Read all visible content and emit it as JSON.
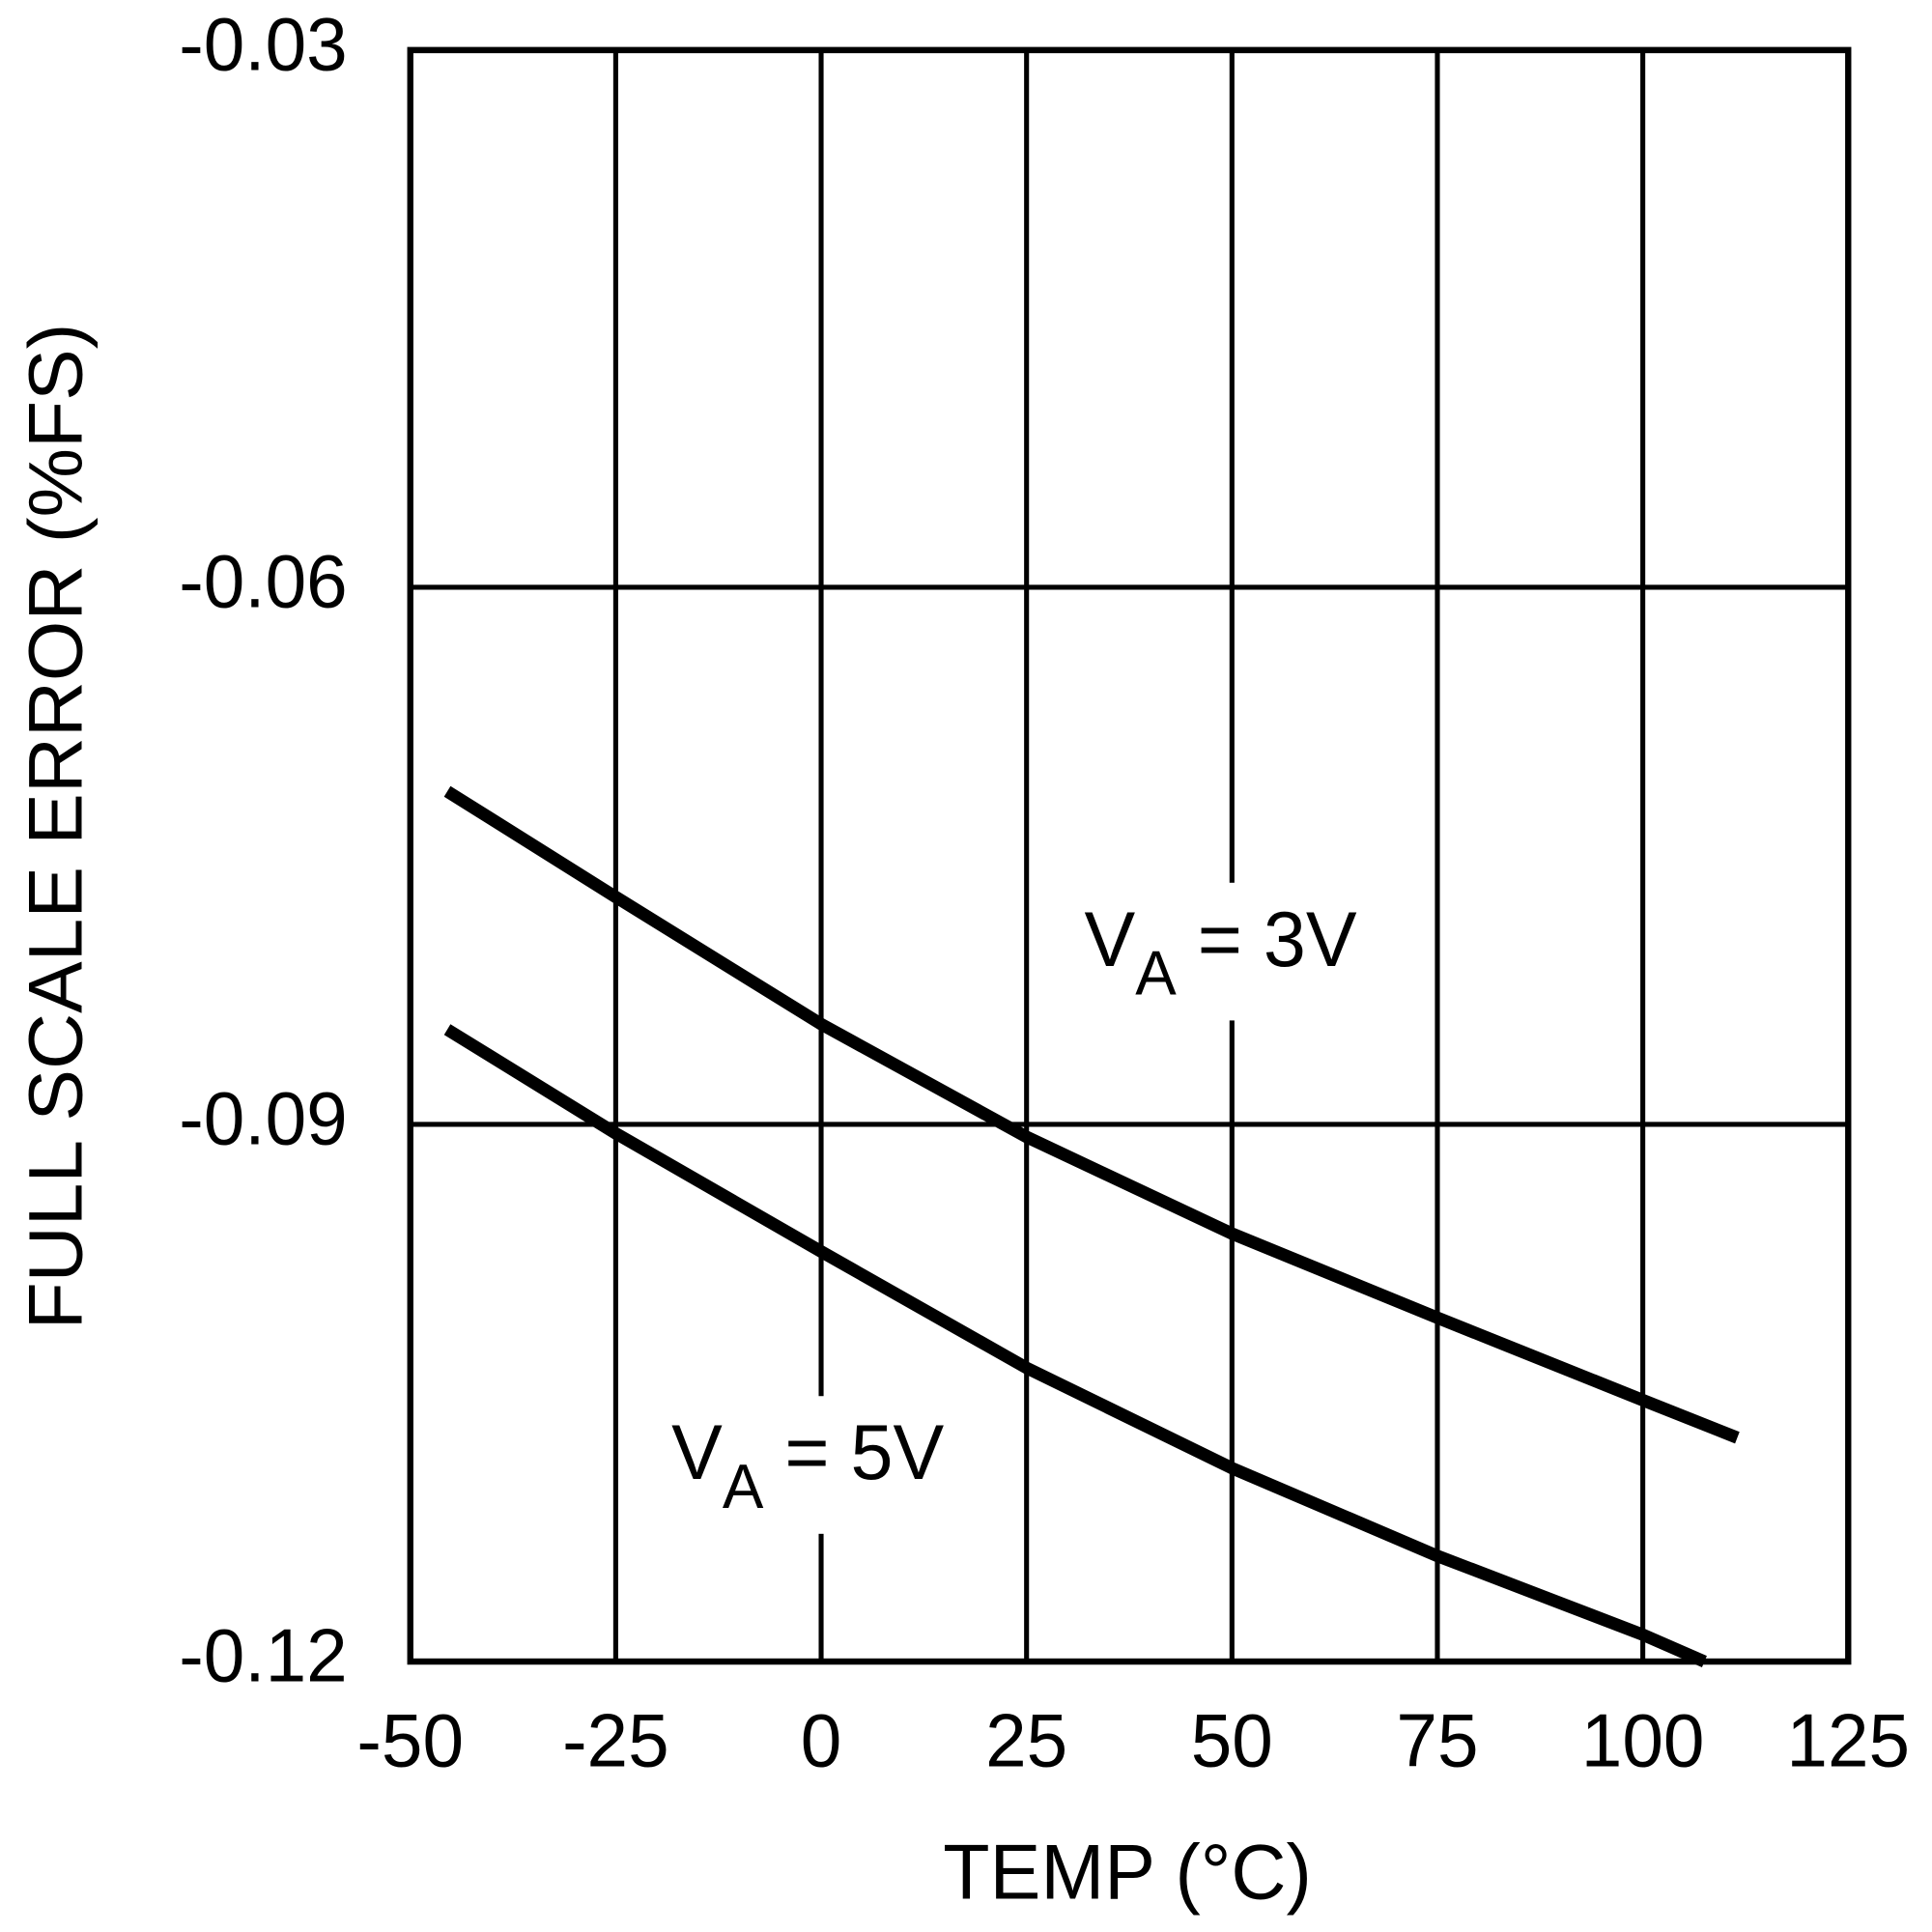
{
  "chart_data": {
    "type": "line",
    "x_label": "TEMP (°C)",
    "y_label": "FULL SCALE ERROR (%FS)",
    "xlim": [
      -50,
      125
    ],
    "xticks": [
      -50,
      -25,
      0,
      25,
      50,
      75,
      100,
      125
    ],
    "ylim": [
      -0.12,
      -0.03
    ],
    "yticks": [
      -0.12,
      -0.09,
      -0.06,
      -0.03
    ],
    "grid": true,
    "series": [
      {
        "label": {
          "base": "V",
          "sub": "A",
          "rest": " = 3V"
        },
        "color": "#000000",
        "x": [
          -45.5,
          -25,
          0,
          25,
          50,
          75,
          100,
          111.5
        ],
        "values": [
          -0.0714,
          -0.0773,
          -0.0844,
          -0.0907,
          -0.0961,
          -0.1008,
          -0.1054,
          -0.1075
        ]
      },
      {
        "label": {
          "base": "V",
          "sub": "A",
          "rest": " = 5V"
        },
        "color": "#000000",
        "x": [
          -45.5,
          -25,
          0,
          25,
          50,
          75,
          100,
          107.5
        ],
        "values": [
          -0.0847,
          -0.0905,
          -0.0971,
          -0.1036,
          -0.1092,
          -0.1141,
          -0.1185,
          -0.12
        ]
      }
    ]
  }
}
